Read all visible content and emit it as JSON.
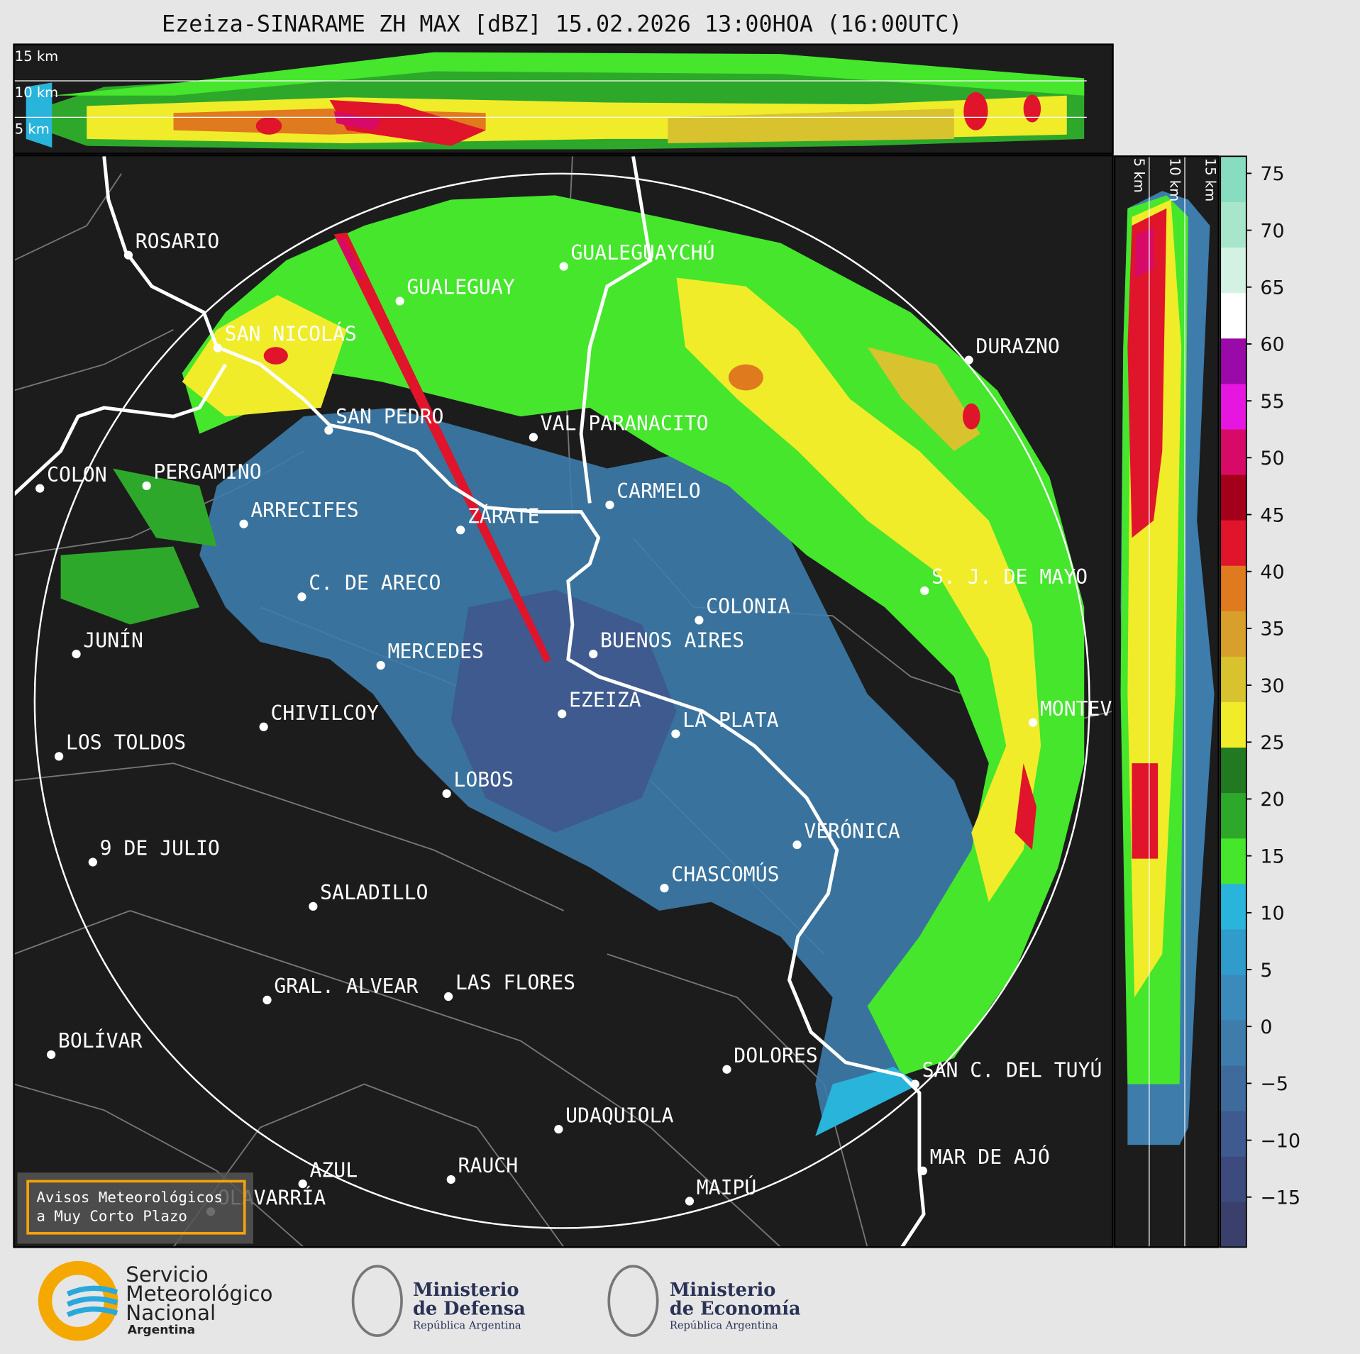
{
  "title": "Ezeiza-SINARAME ZH MAX [dBZ] 15.02.2026 13:00HOA (16:00UTC)",
  "height_labels": [
    "15 km",
    "10 km",
    "5 km"
  ],
  "side_height_labels": [
    "5 km",
    "10 km",
    "15 km"
  ],
  "cities": [
    "ROSARIO",
    "GUALEGUAYCHÚ",
    "GUALEGUAY",
    "SAN NICOLÁS",
    "DURAZNO",
    "SAN PEDRO",
    "VAL PARANACITO",
    "COLON",
    "PERGAMINO",
    "CARMELO",
    "ARRECIFES",
    "ZÁRATE",
    "S. J. DE MAYO",
    "C. DE ARECO",
    "COLONIA",
    "JUNÍN",
    "BUENOS AIRES",
    "MERCEDES",
    "EZEIZA",
    "MONTEV",
    "CHIVILCOY",
    "LA PLATA",
    "LOS TOLDOS",
    "LOBOS",
    "VERÓNICA",
    "9 DE JULIO",
    "CHASCOMÚS",
    "SALADILLO",
    "GRAL. ALVEAR",
    "LAS FLORES",
    "BOLÍVAR",
    "DOLORES",
    "SAN C. DEL TUYÚ",
    "UDAQUIOLA",
    "MAR DE AJÓ",
    "AZUL",
    "RAUCH",
    "OLAVARRÍA",
    "MAIPÚ"
  ],
  "colorbar": {
    "lim": [
      -19.4,
      76.5
    ],
    "ticks": [
      75,
      70,
      65,
      60,
      55,
      50,
      45,
      40,
      35,
      30,
      25,
      20,
      15,
      10,
      5,
      0,
      {
        "value": -5,
        "label": "−5"
      },
      {
        "value": -10,
        "label": "−10"
      },
      {
        "value": -15,
        "label": "−15"
      }
    ],
    "colors": [
      "#3a3f6b",
      "#3d4a7e",
      "#3e5a8e",
      "#3f6b9c",
      "#3d7cab",
      "#3a8bbb",
      "#2f9ccb",
      "#29b4dc",
      "#45e62c",
      "#2ea82a",
      "#217a22",
      "#f0ec2a",
      "#d8c22e",
      "#d8a02a",
      "#e07a1e",
      "#e0142a",
      "#a4001c",
      "#d80a68",
      "#e616e0",
      "#9a0aa8",
      "#ffffff",
      "#d4f2e4",
      "#a8e6cc",
      "#88dcc0"
    ]
  },
  "warning_box": [
    "Avisos Meteorológicos",
    "a Muy Corto Plazo"
  ],
  "footer": {
    "smn": [
      "Servicio",
      "Meteorológico",
      "Nacional",
      "Argentina"
    ],
    "defensa": [
      "Ministerio",
      "de Defensa",
      "República Argentina"
    ],
    "economia": [
      "Ministerio",
      "de Economía",
      "República Argentina"
    ]
  }
}
